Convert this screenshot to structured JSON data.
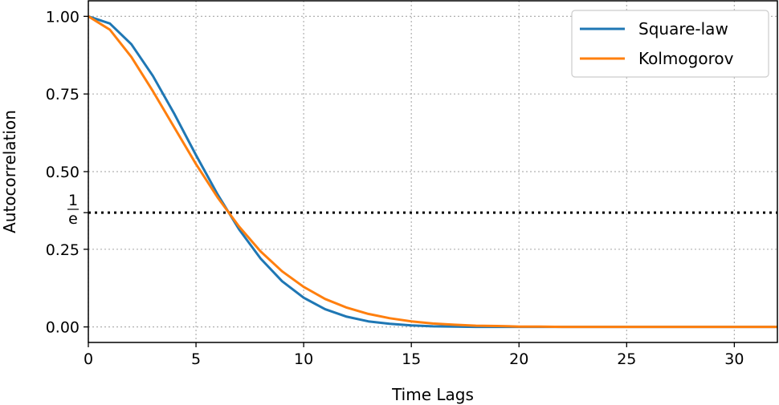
{
  "chart_data": {
    "type": "line",
    "title": "",
    "xlabel": "Time Lags",
    "ylabel": "Autocorrelation",
    "xlim": [
      0,
      32
    ],
    "ylim": [
      -0.05,
      1.05
    ],
    "grid": true,
    "legend_position": "top-right",
    "x_ticks": [
      "0",
      "5",
      "10",
      "15",
      "20",
      "25",
      "30"
    ],
    "y_ticks": [
      "0.00",
      "0.25",
      "0.50",
      "0.75",
      "1.00"
    ],
    "reference_line": {
      "y": 0.3679,
      "label_num": "1",
      "label_den": "e",
      "style": "dotted",
      "color": "#000000"
    },
    "x": [
      0,
      1,
      2,
      3,
      4,
      5,
      6,
      7,
      8,
      9,
      10,
      11,
      12,
      13,
      14,
      15,
      16,
      17,
      18,
      19,
      20,
      21,
      22,
      23,
      24,
      25,
      26,
      27,
      28,
      29,
      30,
      31,
      32
    ],
    "series": [
      {
        "name": "Square-law",
        "color": "#1f77b4",
        "values": [
          1,
          0.977,
          0.91,
          0.808,
          0.685,
          0.553,
          0.427,
          0.314,
          0.22,
          0.147,
          0.094,
          0.057,
          0.033,
          0.018,
          0.01,
          0.005,
          0.002,
          0.001,
          0,
          0,
          0,
          0,
          0,
          0,
          0,
          0,
          0,
          0,
          0,
          0,
          0,
          0,
          0
        ]
      },
      {
        "name": "Kolmogorov",
        "color": "#ff7f0e",
        "values": [
          1,
          0.957,
          0.869,
          0.759,
          0.641,
          0.524,
          0.417,
          0.323,
          0.243,
          0.179,
          0.129,
          0.09,
          0.062,
          0.042,
          0.028,
          0.018,
          0.011,
          0.007,
          0.004,
          0.003,
          0.001,
          0.001,
          0,
          0,
          0,
          0,
          0,
          0,
          0,
          0,
          0,
          0,
          0
        ]
      }
    ]
  }
}
